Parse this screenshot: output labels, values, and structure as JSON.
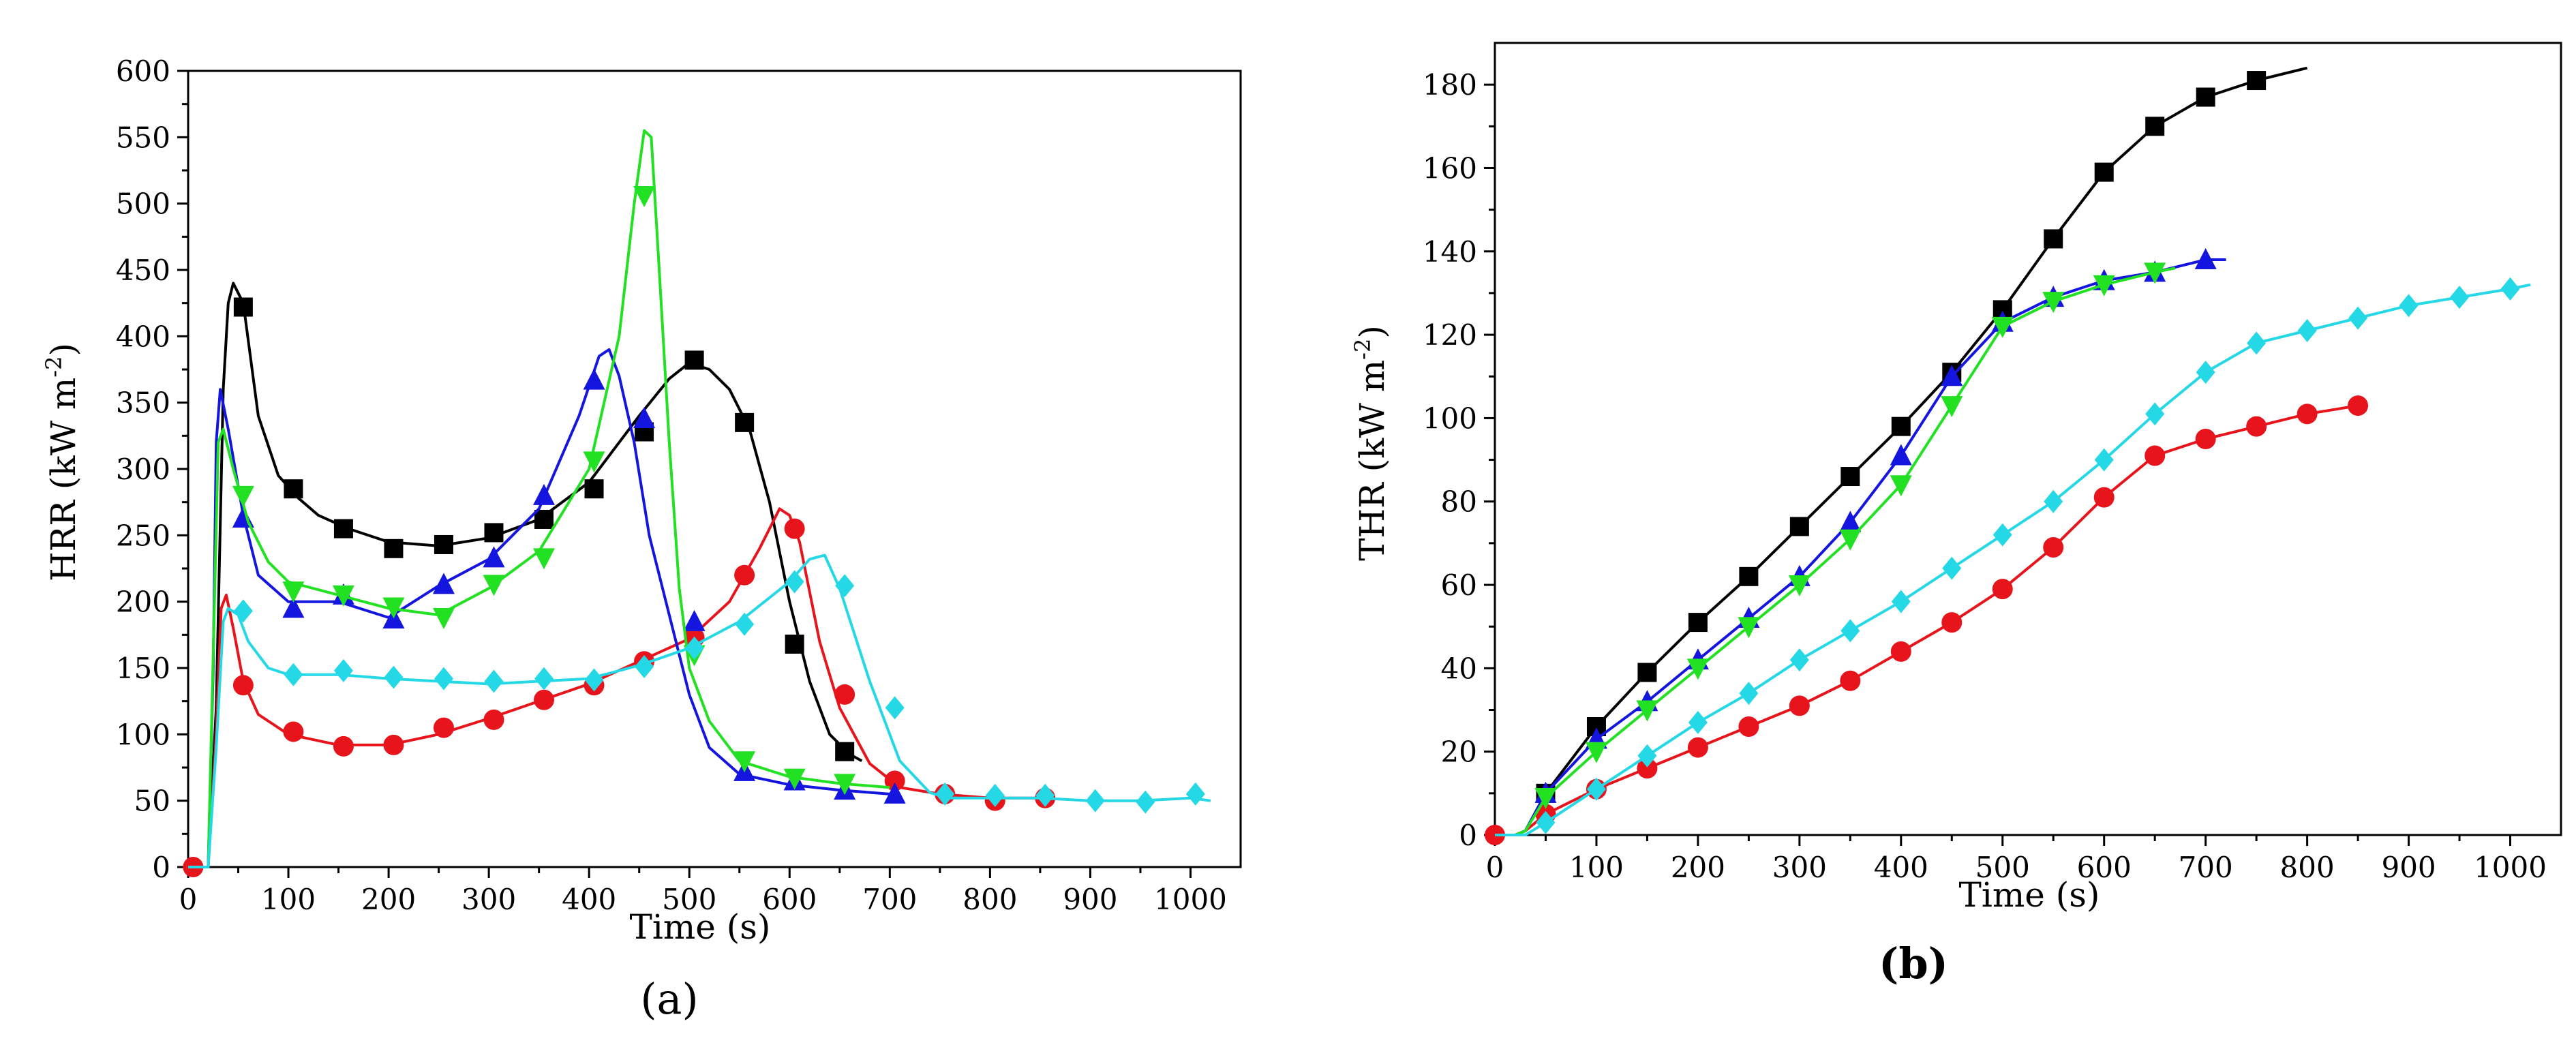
{
  "series_colors": {
    "black_square": "#000000",
    "red_circle": "#e8141c",
    "blue_triangle": "#1515e0",
    "green_down_triangle": "#22e022",
    "cyan_diamond": "#25d8e6"
  },
  "chart_data": [
    {
      "type": "line",
      "panel": "a",
      "caption_open": "(",
      "caption_letter": "a",
      "caption_close": ")",
      "title": "",
      "xlabel": "Time (s)",
      "ylabel": "HRR (kW m",
      "ylabel_sup": "-2",
      "ylabel_close": ")",
      "xlim": [
        0,
        1050
      ],
      "ylim": [
        0,
        600
      ],
      "xticks": [
        0,
        100,
        200,
        300,
        400,
        500,
        600,
        700,
        800,
        900,
        1000
      ],
      "yticks": [
        0,
        50,
        100,
        150,
        200,
        250,
        300,
        350,
        400,
        450,
        500,
        550,
        600
      ],
      "series": [
        {
          "name": "black",
          "color": "#000000",
          "marker": "square",
          "x": [
            0,
            20,
            28,
            35,
            40,
            45,
            55,
            70,
            90,
            110,
            130,
            160,
            200,
            250,
            300,
            350,
            400,
            430,
            450,
            480,
            500,
            520,
            540,
            560,
            580,
            600,
            620,
            640,
            660,
            672
          ],
          "y": [
            0,
            0,
            120,
            360,
            425,
            440,
            425,
            340,
            295,
            278,
            265,
            255,
            245,
            242,
            248,
            262,
            290,
            320,
            340,
            368,
            380,
            375,
            360,
            330,
            275,
            200,
            140,
            100,
            85,
            80
          ],
          "marker_x": [
            55,
            105,
            155,
            205,
            255,
            305,
            355,
            405,
            455,
            505,
            555,
            605,
            655
          ],
          "marker_y": [
            422,
            285,
            255,
            240,
            243,
            252,
            262,
            285,
            328,
            382,
            335,
            168,
            87
          ]
        },
        {
          "name": "red",
          "color": "#e8141c",
          "marker": "circle",
          "x": [
            0,
            20,
            28,
            33,
            38,
            45,
            55,
            70,
            100,
            150,
            200,
            250,
            300,
            350,
            400,
            450,
            500,
            540,
            570,
            590,
            600,
            610,
            630,
            650,
            680,
            710,
            750,
            800,
            850,
            860
          ],
          "y": [
            0,
            0,
            100,
            195,
            205,
            180,
            140,
            115,
            100,
            92,
            92,
            100,
            112,
            125,
            138,
            155,
            172,
            200,
            240,
            270,
            265,
            245,
            170,
            120,
            78,
            60,
            55,
            52,
            52,
            52
          ],
          "marker_x": [
            5,
            55,
            105,
            155,
            205,
            255,
            305,
            355,
            405,
            455,
            505,
            555,
            605,
            655,
            705,
            755,
            805,
            855
          ],
          "marker_y": [
            0,
            137,
            102,
            91,
            92,
            105,
            111,
            126,
            137,
            155,
            173,
            220,
            255,
            130,
            65,
            55,
            50,
            52
          ]
        },
        {
          "name": "blue",
          "color": "#1515e0",
          "marker": "triangle-up",
          "x": [
            0,
            20,
            25,
            28,
            32,
            40,
            55,
            70,
            100,
            150,
            200,
            250,
            300,
            350,
            390,
            410,
            420,
            430,
            445,
            460,
            480,
            500,
            520,
            550,
            600,
            650,
            700,
            710
          ],
          "y": [
            0,
            0,
            150,
            320,
            360,
            330,
            265,
            220,
            200,
            200,
            188,
            212,
            232,
            270,
            340,
            385,
            390,
            370,
            320,
            250,
            190,
            130,
            90,
            70,
            62,
            58,
            55,
            55
          ],
          "marker_x": [
            55,
            105,
            155,
            205,
            255,
            305,
            355,
            405,
            455,
            505,
            555,
            605,
            655,
            705
          ],
          "marker_y": [
            263,
            195,
            205,
            187,
            213,
            233,
            280,
            367,
            338,
            185,
            72,
            65,
            58,
            55
          ]
        },
        {
          "name": "green",
          "color": "#22e022",
          "marker": "triangle-down",
          "x": [
            0,
            20,
            25,
            30,
            35,
            45,
            60,
            80,
            100,
            150,
            200,
            250,
            300,
            350,
            400,
            430,
            445,
            455,
            462,
            470,
            480,
            490,
            500,
            520,
            550,
            600,
            650,
            700
          ],
          "y": [
            0,
            0,
            160,
            320,
            330,
            300,
            260,
            230,
            215,
            205,
            195,
            190,
            210,
            238,
            300,
            400,
            500,
            555,
            550,
            450,
            320,
            210,
            150,
            110,
            80,
            68,
            63,
            60
          ],
          "marker_x": [
            55,
            105,
            155,
            205,
            255,
            305,
            355,
            405,
            455,
            505,
            555,
            605,
            655
          ],
          "marker_y": [
            280,
            208,
            205,
            196,
            188,
            213,
            233,
            306,
            506,
            160,
            80,
            67,
            63
          ]
        },
        {
          "name": "cyan",
          "color": "#25d8e6",
          "marker": "diamond",
          "x": [
            0,
            20,
            28,
            35,
            40,
            50,
            60,
            80,
            100,
            150,
            200,
            250,
            300,
            350,
            400,
            450,
            500,
            550,
            600,
            620,
            635,
            650,
            680,
            710,
            740,
            760,
            800,
            850,
            900,
            950,
            1000,
            1020
          ],
          "y": [
            0,
            0,
            90,
            185,
            195,
            190,
            170,
            150,
            145,
            145,
            142,
            140,
            138,
            140,
            142,
            152,
            165,
            185,
            215,
            232,
            235,
            210,
            140,
            80,
            56,
            52,
            52,
            52,
            50,
            50,
            52,
            50
          ],
          "marker_x": [
            55,
            105,
            155,
            205,
            255,
            305,
            355,
            405,
            455,
            505,
            555,
            605,
            655,
            705,
            755,
            805,
            855,
            905,
            955,
            1005
          ],
          "marker_y": [
            193,
            145,
            148,
            143,
            142,
            140,
            142,
            141,
            151,
            165,
            183,
            215,
            212,
            120,
            55,
            54,
            54,
            50,
            49,
            55
          ]
        }
      ]
    },
    {
      "type": "line",
      "panel": "b",
      "caption_open": "(",
      "caption_letter": "b",
      "caption_close": ")",
      "title": "",
      "xlabel": "Time (s)",
      "ylabel": "THR (kW m",
      "ylabel_sup": "-2",
      "ylabel_close": ")",
      "xlim": [
        0,
        1050
      ],
      "ylim": [
        0,
        190
      ],
      "xticks": [
        0,
        100,
        200,
        300,
        400,
        500,
        600,
        700,
        800,
        900,
        1000
      ],
      "yticks": [
        0,
        20,
        40,
        60,
        80,
        100,
        120,
        140,
        160,
        180
      ],
      "series": [
        {
          "name": "black",
          "color": "#000000",
          "marker": "square",
          "x": [
            0,
            20,
            30,
            50,
            100,
            150,
            200,
            250,
            300,
            350,
            400,
            450,
            500,
            550,
            600,
            650,
            700,
            750,
            800
          ],
          "y": [
            0,
            0,
            1,
            10,
            26,
            39,
            51,
            62,
            74,
            86,
            98,
            111,
            126,
            143,
            159,
            170,
            177,
            181,
            184
          ],
          "marker_x": [
            50,
            100,
            150,
            200,
            250,
            300,
            350,
            400,
            450,
            500,
            550,
            600,
            650,
            700,
            750
          ],
          "marker_y": [
            10,
            26,
            39,
            51,
            62,
            74,
            86,
            98,
            111,
            126,
            143,
            159,
            170,
            177,
            181
          ]
        },
        {
          "name": "red",
          "color": "#e8141c",
          "marker": "circle",
          "x": [
            0,
            20,
            30,
            50,
            100,
            150,
            200,
            250,
            300,
            350,
            400,
            450,
            500,
            550,
            600,
            650,
            700,
            750,
            800,
            850
          ],
          "y": [
            0,
            0,
            1,
            5,
            11,
            16,
            21,
            26,
            31,
            37,
            44,
            51,
            59,
            69,
            81,
            91,
            95,
            98,
            101,
            103
          ],
          "marker_x": [
            0,
            50,
            100,
            150,
            200,
            250,
            300,
            350,
            400,
            450,
            500,
            550,
            600,
            650,
            700,
            750,
            800,
            850
          ],
          "marker_y": [
            0,
            5,
            11,
            16,
            21,
            26,
            31,
            37,
            44,
            51,
            59,
            69,
            81,
            91,
            95,
            98,
            101,
            103
          ]
        },
        {
          "name": "blue",
          "color": "#1515e0",
          "marker": "triangle-up",
          "x": [
            0,
            20,
            30,
            50,
            100,
            150,
            200,
            250,
            300,
            350,
            400,
            450,
            500,
            550,
            600,
            650,
            700,
            720
          ],
          "y": [
            0,
            0,
            1,
            10,
            23,
            32,
            42,
            52,
            62,
            75,
            91,
            110,
            123,
            129,
            133,
            135,
            138,
            138
          ],
          "marker_x": [
            50,
            100,
            150,
            200,
            250,
            300,
            350,
            400,
            450,
            500,
            550,
            600,
            650,
            700
          ],
          "marker_y": [
            10,
            23,
            32,
            42,
            52,
            62,
            75,
            91,
            110,
            123,
            129,
            133,
            135,
            138
          ]
        },
        {
          "name": "green",
          "color": "#22e022",
          "marker": "triangle-down",
          "x": [
            0,
            20,
            30,
            50,
            100,
            150,
            200,
            250,
            300,
            350,
            400,
            450,
            500,
            550,
            600,
            650,
            670
          ],
          "y": [
            0,
            0,
            1,
            9,
            20,
            30,
            40,
            50,
            60,
            71,
            84,
            103,
            122,
            128,
            132,
            135,
            136
          ],
          "marker_x": [
            50,
            100,
            150,
            200,
            250,
            300,
            350,
            400,
            450,
            500,
            550,
            600,
            650
          ],
          "marker_y": [
            9,
            20,
            30,
            40,
            50,
            60,
            71,
            84,
            103,
            122,
            128,
            132,
            135
          ]
        },
        {
          "name": "cyan",
          "color": "#25d8e6",
          "marker": "diamond",
          "x": [
            0,
            20,
            30,
            50,
            100,
            150,
            200,
            250,
            300,
            350,
            400,
            450,
            500,
            550,
            600,
            650,
            700,
            750,
            800,
            850,
            900,
            950,
            1000,
            1020
          ],
          "y": [
            0,
            0,
            0,
            3,
            11,
            19,
            27,
            34,
            42,
            49,
            56,
            64,
            72,
            80,
            90,
            101,
            111,
            118,
            121,
            124,
            127,
            129,
            131,
            132
          ],
          "marker_x": [
            50,
            100,
            150,
            200,
            250,
            300,
            350,
            400,
            450,
            500,
            550,
            600,
            650,
            700,
            750,
            800,
            850,
            900,
            950,
            1000
          ],
          "marker_y": [
            3,
            11,
            19,
            27,
            34,
            42,
            49,
            56,
            64,
            72,
            80,
            90,
            101,
            111,
            118,
            121,
            124,
            127,
            129,
            131
          ]
        }
      ]
    }
  ]
}
